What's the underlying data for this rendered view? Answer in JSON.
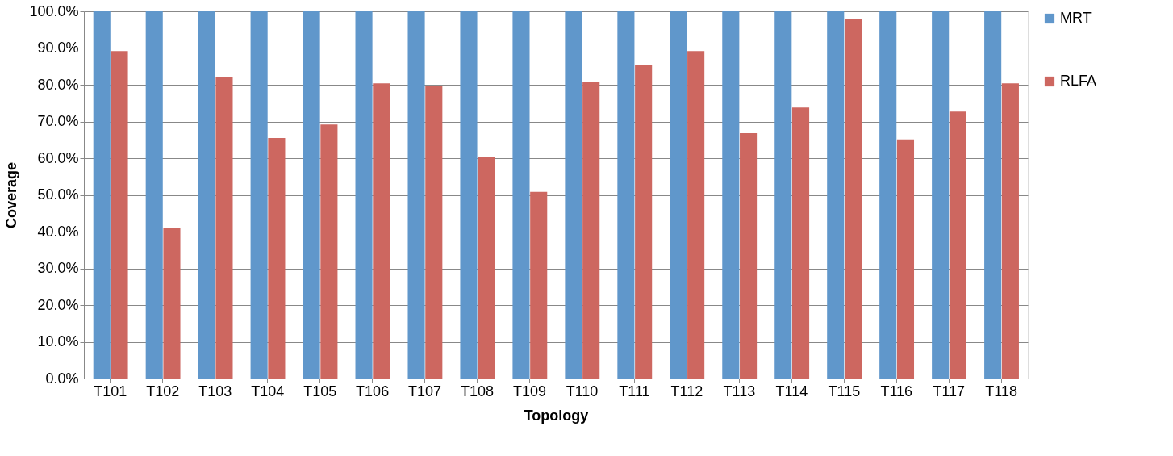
{
  "chart_data": {
    "type": "bar",
    "xlabel": "Topology",
    "ylabel": "Coverage",
    "categories": [
      "T101",
      "T102",
      "T103",
      "T104",
      "T105",
      "T106",
      "T107",
      "T108",
      "T109",
      "T110",
      "T111",
      "T112",
      "T113",
      "T114",
      "T115",
      "T116",
      "T117",
      "T118"
    ],
    "series": [
      {
        "name": "MRT",
        "color": "#6097cb",
        "values": [
          100,
          100,
          100,
          100,
          100,
          100,
          100,
          100,
          100,
          100,
          100,
          100,
          100,
          100,
          100,
          100,
          100,
          100
        ]
      },
      {
        "name": "RLFA",
        "color": "#cd6760",
        "values": [
          89.2,
          40.9,
          82.0,
          65.5,
          69.2,
          80.4,
          79.8,
          60.4,
          50.8,
          80.7,
          85.3,
          89.2,
          66.8,
          73.8,
          98.0,
          65.1,
          72.7,
          80.4
        ]
      }
    ],
    "ylim": [
      0,
      100
    ],
    "yticks": [
      {
        "value": 0,
        "label": "0.0%"
      },
      {
        "value": 10,
        "label": "10.0%"
      },
      {
        "value": 20,
        "label": "20.0%"
      },
      {
        "value": 30,
        "label": "30.0%"
      },
      {
        "value": 40,
        "label": "40.0%"
      },
      {
        "value": 50,
        "label": "50.0%"
      },
      {
        "value": 60,
        "label": "60.0%"
      },
      {
        "value": 70,
        "label": "70.0%"
      },
      {
        "value": 80,
        "label": "80.0%"
      },
      {
        "value": 90,
        "label": "90.0%"
      },
      {
        "value": 100,
        "label": "100.0%"
      }
    ],
    "grid": "y",
    "legend": "right"
  }
}
